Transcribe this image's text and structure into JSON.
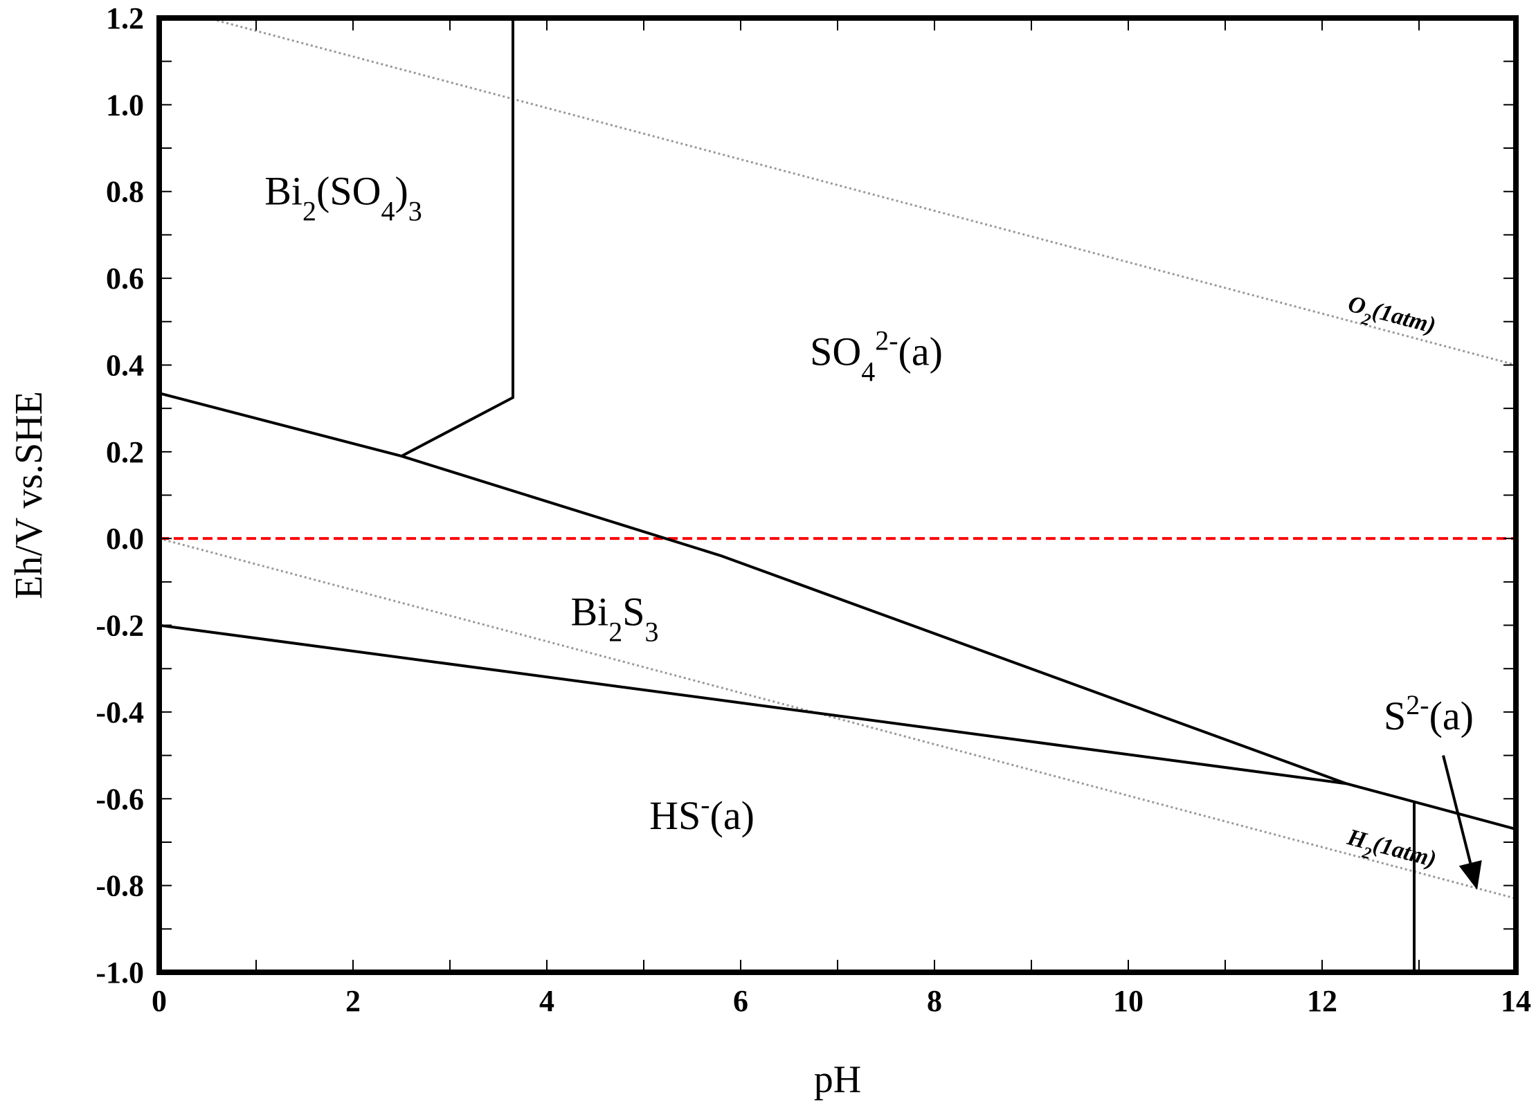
{
  "chart_data": {
    "type": "line",
    "xlabel": "pH",
    "ylabel": "Eh/V vs.SHE",
    "xlim": [
      0,
      14
    ],
    "ylim": [
      -1.0,
      1.2
    ],
    "xticks": [
      "0",
      "2",
      "4",
      "6",
      "8",
      "10",
      "12",
      "14"
    ],
    "yticks": [
      "-1.0",
      "-0.8",
      "-0.6",
      "-0.4",
      "-0.2",
      "0.0",
      "0.2",
      "0.4",
      "0.6",
      "0.8",
      "1.0",
      "1.2"
    ],
    "grid": false,
    "boundaries": [
      {
        "x": [
          0,
          2.5,
          5.8,
          12.25,
          14
        ],
        "y": [
          0.335,
          0.19,
          -0.04,
          -0.565,
          -0.67
        ]
      },
      {
        "x": [
          2.5,
          3.65,
          3.65
        ],
        "y": [
          0.19,
          0.325,
          1.2
        ]
      },
      {
        "x": [
          0,
          12.25
        ],
        "y": [
          -0.2,
          -0.565
        ]
      },
      {
        "x": [
          12.95,
          12.95
        ],
        "y": [
          -0.61,
          -1.0
        ]
      }
    ],
    "reference_lines": [
      {
        "label_main": "O",
        "label_sub": "2",
        "label_rest": "(1atm)",
        "x": [
          0.5,
          14
        ],
        "y": [
          1.2,
          0.4
        ],
        "style": "dotted",
        "color": "#999999"
      },
      {
        "label_main": "H",
        "label_sub": "2",
        "label_rest": "(1atm)",
        "x": [
          0,
          14
        ],
        "y": [
          0,
          -0.83
        ],
        "style": "dotted",
        "color": "#999999"
      },
      {
        "x": [
          0,
          14
        ],
        "y": [
          0,
          0
        ],
        "style": "dashed",
        "color": "#ff0000"
      }
    ],
    "regions": [
      {
        "parts": [
          [
            "Bi",
            ""
          ],
          [
            "2",
            "sub"
          ],
          [
            "(SO",
            ""
          ],
          [
            "4",
            "sub"
          ],
          [
            ")",
            ""
          ],
          [
            "3",
            "sub"
          ]
        ],
        "x": 1.9,
        "y": 0.77
      },
      {
        "parts": [
          [
            "SO",
            ""
          ],
          [
            "4",
            "sub"
          ],
          [
            "2-",
            "sup"
          ],
          [
            "(a)",
            ""
          ]
        ],
        "x": 7.4,
        "y": 0.4
      },
      {
        "parts": [
          [
            "Bi",
            ""
          ],
          [
            "2",
            "sub"
          ],
          [
            "S",
            ""
          ],
          [
            "3",
            "sub"
          ]
        ],
        "x": 4.7,
        "y": -0.2
      },
      {
        "parts": [
          [
            "HS",
            ""
          ],
          [
            "-",
            "sup"
          ],
          [
            "(a)",
            ""
          ]
        ],
        "x": 5.6,
        "y": -0.67
      },
      {
        "parts": [
          [
            "S",
            ""
          ],
          [
            "2-",
            "sup"
          ],
          [
            "(a)",
            ""
          ]
        ],
        "x": 13.1,
        "y": -0.44
      }
    ],
    "annotations": [
      {
        "type": "arrow",
        "from": [
          13.25,
          -0.5
        ],
        "to": [
          13.6,
          -0.81
        ]
      }
    ]
  }
}
